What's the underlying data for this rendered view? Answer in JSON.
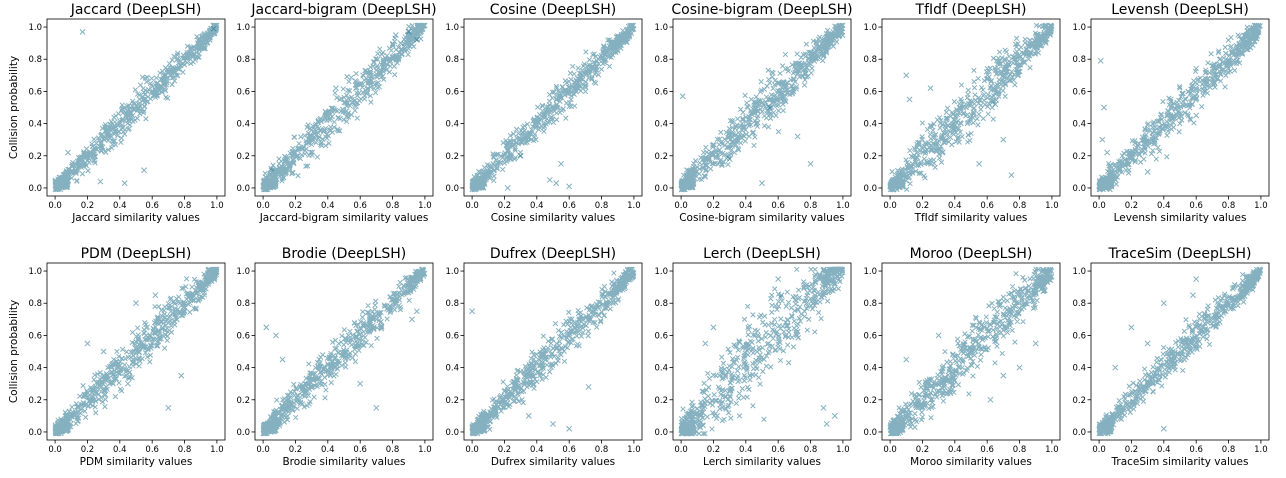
{
  "figure": {
    "ylabel": "Collision probability",
    "marker_color": "#1f6f8b",
    "marker": "x"
  },
  "chart_data": [
    {
      "type": "scatter",
      "title": "Jaccard (DeepLSH)",
      "xlabel": "Jaccard similarity values",
      "ylabel": "Collision probability",
      "xlim": [
        -0.05,
        1.05
      ],
      "ylim": [
        -0.05,
        1.05
      ],
      "xticks": [
        0.0,
        0.2,
        0.4,
        0.6,
        0.8,
        1.0
      ],
      "yticks": [
        0.0,
        0.2,
        0.4,
        0.6,
        0.8,
        1.0
      ],
      "tick_labels": [
        "0.0",
        "0.2",
        "0.4",
        "0.6",
        "0.8",
        "1.0"
      ],
      "trend": {
        "slope": 1.0,
        "intercept": 0.0,
        "spread": 0.045
      },
      "outliers": [
        [
          0.17,
          0.97
        ],
        [
          0.43,
          0.03
        ],
        [
          0.55,
          0.11
        ],
        [
          0.98,
          0.99
        ],
        [
          0.08,
          0.22
        ],
        [
          0.28,
          0.04
        ]
      ]
    },
    {
      "type": "scatter",
      "title": "Jaccard-bigram (DeepLSH)",
      "xlabel": "Jaccard-bigram similarity values",
      "ylabel": "",
      "xlim": [
        -0.05,
        1.05
      ],
      "ylim": [
        -0.05,
        1.05
      ],
      "xticks": [
        0.0,
        0.2,
        0.4,
        0.6,
        0.8,
        1.0
      ],
      "yticks": [
        0.0,
        0.2,
        0.4,
        0.6,
        0.8,
        1.0
      ],
      "tick_labels": [
        "0.0",
        "0.2",
        "0.4",
        "0.6",
        "0.8",
        "1.0"
      ],
      "trend": {
        "slope": 1.02,
        "intercept": 0.0,
        "spread": 0.06
      },
      "outliers": [
        [
          0.82,
          0.95
        ],
        [
          0.85,
          0.9
        ],
        [
          0.9,
          0.97
        ],
        [
          0.95,
          0.92
        ],
        [
          0.05,
          0.12
        ],
        [
          0.45,
          0.62
        ]
      ]
    },
    {
      "type": "scatter",
      "title": "Cosine (DeepLSH)",
      "xlabel": "Cosine similarity values",
      "ylabel": "",
      "xlim": [
        -0.05,
        1.05
      ],
      "ylim": [
        -0.05,
        1.05
      ],
      "xticks": [
        0.0,
        0.2,
        0.4,
        0.6,
        0.8,
        1.0
      ],
      "yticks": [
        0.0,
        0.2,
        0.4,
        0.6,
        0.8,
        1.0
      ],
      "tick_labels": [
        "0.0",
        "0.2",
        "0.4",
        "0.6",
        "0.8",
        "1.0"
      ],
      "trend": {
        "slope": 1.0,
        "intercept": 0.0,
        "spread": 0.05
      },
      "outliers": [
        [
          0.3,
          0.2
        ],
        [
          0.48,
          0.05
        ],
        [
          0.52,
          0.03
        ],
        [
          0.55,
          0.15
        ],
        [
          0.6,
          0.01
        ],
        [
          0.22,
          0.0
        ]
      ]
    },
    {
      "type": "scatter",
      "title": "Cosine-bigram (DeepLSH)",
      "xlabel": "Cosine-bigram similarity values",
      "ylabel": "",
      "xlim": [
        -0.05,
        1.05
      ],
      "ylim": [
        -0.05,
        1.05
      ],
      "xticks": [
        0.0,
        0.2,
        0.4,
        0.6,
        0.8,
        1.0
      ],
      "yticks": [
        0.0,
        0.2,
        0.4,
        0.6,
        0.8,
        1.0
      ],
      "tick_labels": [
        "0.0",
        "0.2",
        "0.4",
        "0.6",
        "0.8",
        "1.0"
      ],
      "trend": {
        "slope": 1.0,
        "intercept": 0.0,
        "spread": 0.06
      },
      "outliers": [
        [
          0.01,
          0.57
        ],
        [
          0.3,
          0.18
        ],
        [
          0.5,
          0.03
        ],
        [
          0.55,
          0.5
        ],
        [
          0.8,
          0.15
        ],
        [
          0.72,
          0.32
        ]
      ]
    },
    {
      "type": "scatter",
      "title": "TfIdf (DeepLSH)",
      "xlabel": "TfIdf similarity values",
      "ylabel": "",
      "xlim": [
        -0.05,
        1.05
      ],
      "ylim": [
        -0.05,
        1.05
      ],
      "xticks": [
        0.0,
        0.2,
        0.4,
        0.6,
        0.8,
        1.0
      ],
      "yticks": [
        0.0,
        0.2,
        0.4,
        0.6,
        0.8,
        1.0
      ],
      "tick_labels": [
        "0.0",
        "0.2",
        "0.4",
        "0.6",
        "0.8",
        "1.0"
      ],
      "trend": {
        "slope": 1.0,
        "intercept": 0.0,
        "spread": 0.07
      },
      "outliers": [
        [
          0.1,
          0.7
        ],
        [
          0.25,
          0.62
        ],
        [
          0.55,
          0.15
        ],
        [
          0.75,
          0.08
        ],
        [
          0.7,
          0.3
        ],
        [
          0.12,
          0.55
        ],
        [
          0.65,
          0.52
        ]
      ]
    },
    {
      "type": "scatter",
      "title": "Levensh (DeepLSH)",
      "xlabel": "Levensh similarity values",
      "ylabel": "",
      "xlim": [
        -0.05,
        1.05
      ],
      "ylim": [
        -0.05,
        1.05
      ],
      "xticks": [
        0.0,
        0.2,
        0.4,
        0.6,
        0.8,
        1.0
      ],
      "yticks": [
        0.0,
        0.2,
        0.4,
        0.6,
        0.8,
        1.0
      ],
      "tick_labels": [
        "0.0",
        "0.2",
        "0.4",
        "0.6",
        "0.8",
        "1.0"
      ],
      "trend": {
        "slope": 1.0,
        "intercept": 0.0,
        "spread": 0.055
      },
      "outliers": [
        [
          0.01,
          0.79
        ],
        [
          0.02,
          0.3
        ],
        [
          0.03,
          0.5
        ],
        [
          0.3,
          0.1
        ],
        [
          0.6,
          0.45
        ],
        [
          0.05,
          0.22
        ]
      ]
    },
    {
      "type": "scatter",
      "title": "PDM (DeepLSH)",
      "xlabel": "PDM similarity values",
      "ylabel": "Collision probability",
      "xlim": [
        -0.05,
        1.05
      ],
      "ylim": [
        -0.05,
        1.05
      ],
      "xticks": [
        0.0,
        0.2,
        0.4,
        0.6,
        0.8,
        1.0
      ],
      "yticks": [
        0.0,
        0.2,
        0.4,
        0.6,
        0.8,
        1.0
      ],
      "tick_labels": [
        "0.0",
        "0.2",
        "0.4",
        "0.6",
        "0.8",
        "1.0"
      ],
      "trend": {
        "slope": 1.0,
        "intercept": 0.0,
        "spread": 0.055
      },
      "outliers": [
        [
          0.2,
          0.55
        ],
        [
          0.3,
          0.5
        ],
        [
          0.5,
          0.8
        ],
        [
          0.62,
          0.85
        ],
        [
          0.78,
          0.35
        ],
        [
          0.45,
          0.3
        ],
        [
          0.7,
          0.15
        ]
      ]
    },
    {
      "type": "scatter",
      "title": "Brodie (DeepLSH)",
      "xlabel": "Brodie similarity values",
      "ylabel": "",
      "xlim": [
        -0.05,
        1.05
      ],
      "ylim": [
        -0.05,
        1.05
      ],
      "xticks": [
        0.0,
        0.2,
        0.4,
        0.6,
        0.8,
        1.0
      ],
      "yticks": [
        0.0,
        0.2,
        0.4,
        0.6,
        0.8,
        1.0
      ],
      "tick_labels": [
        "0.0",
        "0.2",
        "0.4",
        "0.6",
        "0.8",
        "1.0"
      ],
      "trend": {
        "slope": 1.0,
        "intercept": 0.0,
        "spread": 0.05
      },
      "outliers": [
        [
          0.02,
          0.65
        ],
        [
          0.08,
          0.6
        ],
        [
          0.12,
          0.45
        ],
        [
          0.6,
          0.3
        ],
        [
          0.7,
          0.15
        ],
        [
          0.92,
          0.7
        ],
        [
          0.95,
          0.75
        ]
      ]
    },
    {
      "type": "scatter",
      "title": "Dufrex (DeepLSH)",
      "xlabel": "Dufrex similarity values",
      "ylabel": "",
      "xlim": [
        -0.05,
        1.05
      ],
      "ylim": [
        -0.05,
        1.05
      ],
      "xticks": [
        0.0,
        0.2,
        0.4,
        0.6,
        0.8,
        1.0
      ],
      "yticks": [
        0.0,
        0.2,
        0.4,
        0.6,
        0.8,
        1.0
      ],
      "tick_labels": [
        "0.0",
        "0.2",
        "0.4",
        "0.6",
        "0.8",
        "1.0"
      ],
      "trend": {
        "slope": 1.0,
        "intercept": 0.0,
        "spread": 0.05
      },
      "outliers": [
        [
          0.0,
          0.75
        ],
        [
          0.5,
          0.05
        ],
        [
          0.6,
          0.02
        ],
        [
          0.72,
          0.28
        ],
        [
          0.35,
          0.1
        ]
      ]
    },
    {
      "type": "scatter",
      "title": "Lerch (DeepLSH)",
      "xlabel": "Lerch similarity values",
      "ylabel": "",
      "xlim": [
        -0.05,
        1.05
      ],
      "ylim": [
        -0.05,
        1.05
      ],
      "xticks": [
        0.0,
        0.2,
        0.4,
        0.6,
        0.8,
        1.0
      ],
      "yticks": [
        0.0,
        0.2,
        0.4,
        0.6,
        0.8,
        1.0
      ],
      "tick_labels": [
        "0.0",
        "0.2",
        "0.4",
        "0.6",
        "0.8",
        "1.0"
      ],
      "trend": {
        "slope": 1.05,
        "intercept": 0.0,
        "spread": 0.11
      },
      "outliers": [
        [
          0.15,
          0.55
        ],
        [
          0.2,
          0.65
        ],
        [
          0.6,
          0.95
        ],
        [
          0.62,
          0.85
        ],
        [
          0.88,
          0.15
        ],
        [
          0.9,
          0.05
        ],
        [
          0.95,
          0.1
        ]
      ]
    },
    {
      "type": "scatter",
      "title": "Moroo (DeepLSH)",
      "xlabel": "Moroo similarity values",
      "ylabel": "",
      "xlim": [
        -0.05,
        1.05
      ],
      "ylim": [
        -0.05,
        1.05
      ],
      "xticks": [
        0.0,
        0.2,
        0.4,
        0.6,
        0.8,
        1.0
      ],
      "yticks": [
        0.0,
        0.2,
        0.4,
        0.6,
        0.8,
        1.0
      ],
      "tick_labels": [
        "0.0",
        "0.2",
        "0.4",
        "0.6",
        "0.8",
        "1.0"
      ],
      "trend": {
        "slope": 1.0,
        "intercept": 0.0,
        "spread": 0.07
      },
      "outliers": [
        [
          0.1,
          0.45
        ],
        [
          0.3,
          0.6
        ],
        [
          0.62,
          0.2
        ],
        [
          0.7,
          0.35
        ],
        [
          0.8,
          0.4
        ],
        [
          0.9,
          0.55
        ]
      ]
    },
    {
      "type": "scatter",
      "title": "TraceSim (DeepLSH)",
      "xlabel": "TraceSim similarity values",
      "ylabel": "",
      "xlim": [
        -0.05,
        1.05
      ],
      "ylim": [
        -0.05,
        1.05
      ],
      "xticks": [
        0.0,
        0.2,
        0.4,
        0.6,
        0.8,
        1.0
      ],
      "yticks": [
        0.0,
        0.2,
        0.4,
        0.6,
        0.8,
        1.0
      ],
      "tick_labels": [
        "0.0",
        "0.2",
        "0.4",
        "0.6",
        "0.8",
        "1.0"
      ],
      "trend": {
        "slope": 1.0,
        "intercept": 0.0,
        "spread": 0.045
      },
      "outliers": [
        [
          0.1,
          0.4
        ],
        [
          0.2,
          0.65
        ],
        [
          0.3,
          0.55
        ],
        [
          0.4,
          0.8
        ],
        [
          0.58,
          0.85
        ],
        [
          0.6,
          0.95
        ],
        [
          0.4,
          0.02
        ]
      ]
    }
  ]
}
